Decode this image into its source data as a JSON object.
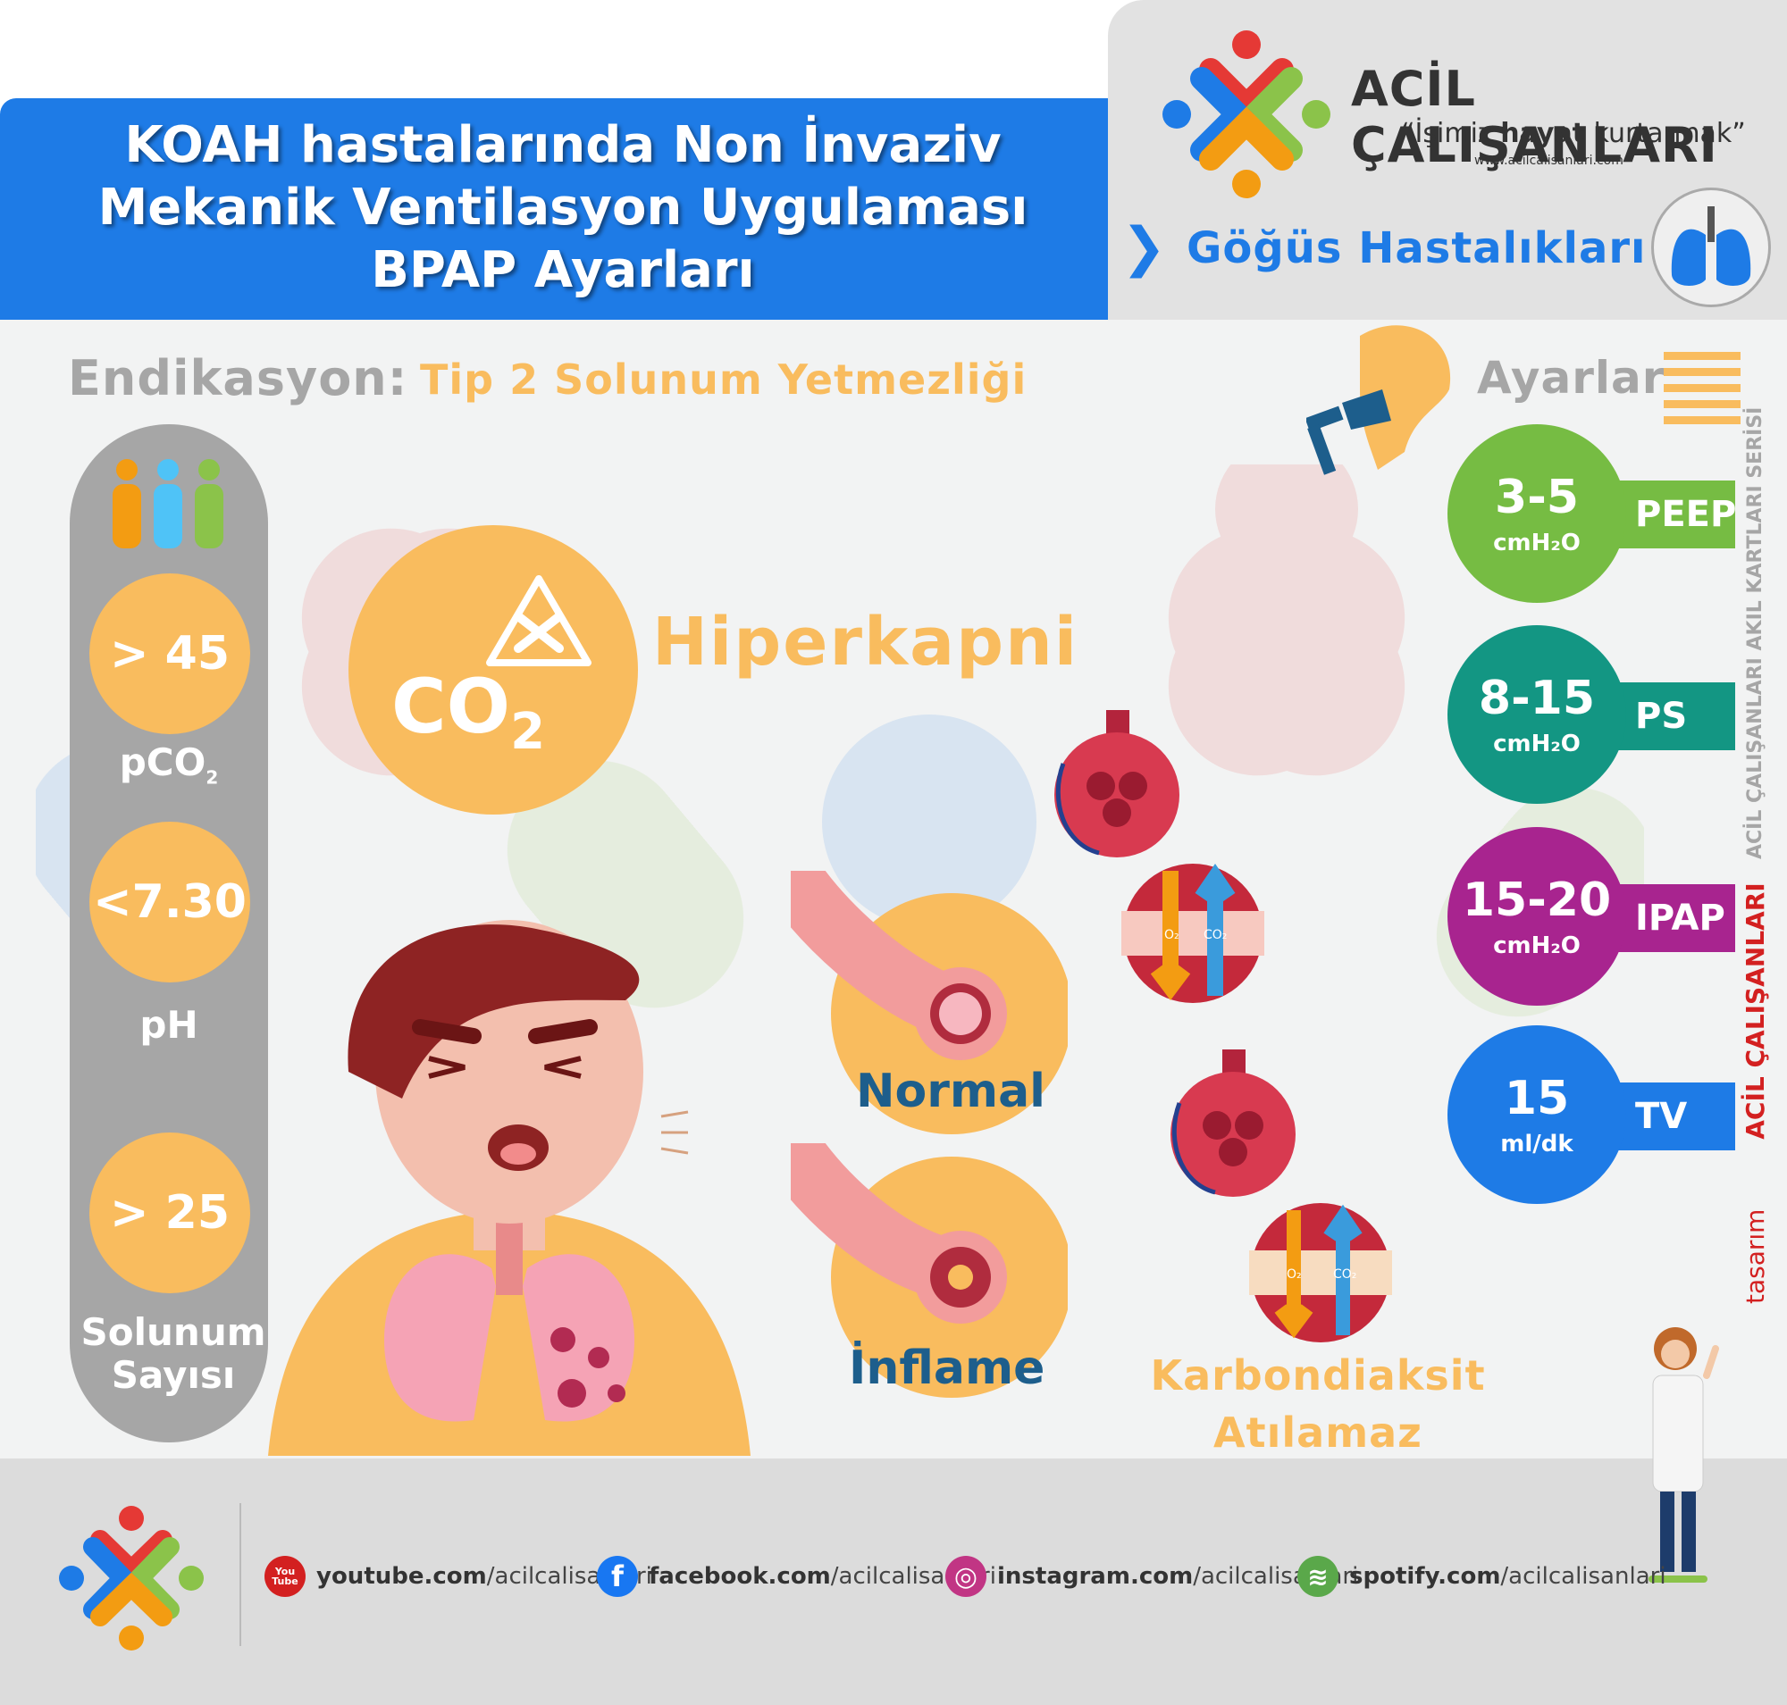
{
  "header": {
    "title_line1": "KOAH hastalarında Non İnvaziv",
    "title_line2": "Mekanik Ventilasyon Uygulaması",
    "title_line3": "BPAP Ayarları"
  },
  "brand": {
    "name": "ACİL ÇALIŞANLARI",
    "slogan_pre": "“İşimiz ",
    "slogan_bold": "hayat",
    "slogan_post": " kurtarmak”",
    "website": "www.acilcalisanlari.com",
    "category": "Göğüs Hastalıkları"
  },
  "indication": {
    "label": "Endikasyon:",
    "value": "Tip 2  Solunum Yetmezliği"
  },
  "criteria": [
    {
      "value": "> 45",
      "label": "pCO",
      "sub": "2"
    },
    {
      "value": "<7.30",
      "label": "pH"
    },
    {
      "value": "> 25",
      "label_line1": "Solunum",
      "label_line2": "Sayısı"
    }
  ],
  "hypercapnia": {
    "co2": "CO",
    "co2_sub": "2",
    "label": "Hiperkapni"
  },
  "airways": {
    "normal": "Normal",
    "inflamed": "İnflame"
  },
  "gas_exchange": {
    "o2": "O₂",
    "co2": "CO₂",
    "caption_line1": "Karbondiaksit",
    "caption_line2": "Atılamaz"
  },
  "settings": {
    "title": "Ayarlar",
    "items": [
      {
        "value": "3-5",
        "unit": "cmH₂O",
        "name": "PEEP",
        "color": "#76bc43"
      },
      {
        "value": "8-15",
        "unit": "cmH₂O",
        "name": "PS",
        "color": "#139683"
      },
      {
        "value": "15-20",
        "unit": "cmH₂O",
        "name": "IPAP",
        "color": "#a8248f"
      },
      {
        "value": "15",
        "unit": "ml/dk",
        "name": "TV",
        "color": "#1e7be6"
      }
    ]
  },
  "side_text": {
    "series": "ACİL ÇALIŞANLARI AKIL KARTLARI SERİSİ",
    "design_prefix": "tasarım",
    "design_brand": "ACİL ÇALIŞANLARI"
  },
  "footer": {
    "links": [
      {
        "domain": "youtube.com",
        "path": "/acilcalisanlari",
        "color": "#d32020",
        "icon": "You Tube"
      },
      {
        "domain": "facebook.com",
        "path": "/acilcalisanlari",
        "color": "#1877f2",
        "icon": "f"
      },
      {
        "domain": "instagram.com",
        "path": "/acilcalisanlari",
        "color": "#c13584",
        "icon": "◎"
      },
      {
        "domain": "spotify.com",
        "path": "/acilcalisanlari",
        "color": "#5aa84a",
        "icon": "≋"
      }
    ]
  }
}
